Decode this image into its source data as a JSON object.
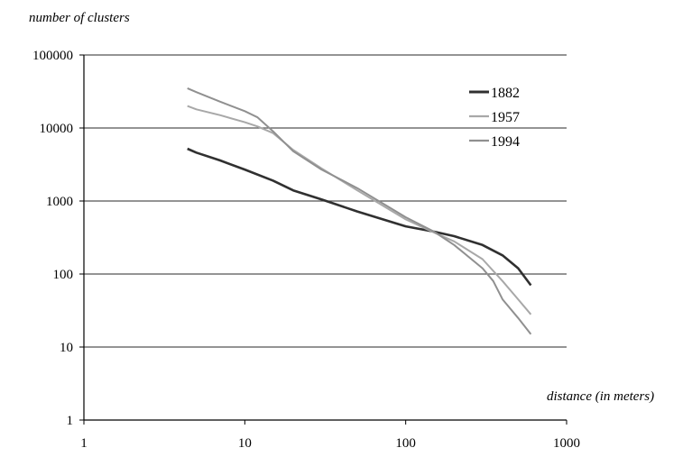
{
  "chart_data": {
    "type": "line",
    "xlabel": "distance (in meters)",
    "ylabel": "number of clusters",
    "x_scale": "log",
    "y_scale": "log",
    "xlim": [
      1,
      1000
    ],
    "ylim": [
      1,
      100000
    ],
    "x_ticks": [
      "1",
      "10",
      "100",
      "1000"
    ],
    "y_ticks": [
      "1",
      "10",
      "100",
      "1000",
      "10000",
      "100000"
    ],
    "grid": "horizontal",
    "legend_position": "top-right",
    "series": [
      {
        "name": "1882",
        "color": "#303030",
        "x": [
          4.4,
          5,
          7,
          10,
          15,
          20,
          30,
          50,
          100,
          150,
          200,
          300,
          400,
          500,
          600
        ],
        "y": [
          5200,
          4600,
          3600,
          2700,
          1900,
          1400,
          1050,
          720,
          450,
          380,
          330,
          250,
          180,
          120,
          70
        ]
      },
      {
        "name": "1957",
        "color": "#a8a8a8",
        "x": [
          4.4,
          5,
          7,
          10,
          12,
          15,
          20,
          30,
          50,
          100,
          150,
          200,
          300,
          400,
          500,
          600
        ],
        "y": [
          20000,
          18000,
          15000,
          12000,
          10500,
          8500,
          5000,
          2800,
          1400,
          560,
          370,
          280,
          160,
          80,
          45,
          28
        ]
      },
      {
        "name": "1994",
        "color": "#909090",
        "x": [
          4.4,
          5,
          7,
          10,
          12,
          15,
          20,
          30,
          50,
          100,
          150,
          200,
          300,
          350,
          400,
          500,
          600
        ],
        "y": [
          35000,
          31000,
          23000,
          17000,
          14000,
          9000,
          4800,
          2700,
          1500,
          600,
          380,
          250,
          120,
          80,
          45,
          25,
          15
        ]
      }
    ]
  }
}
